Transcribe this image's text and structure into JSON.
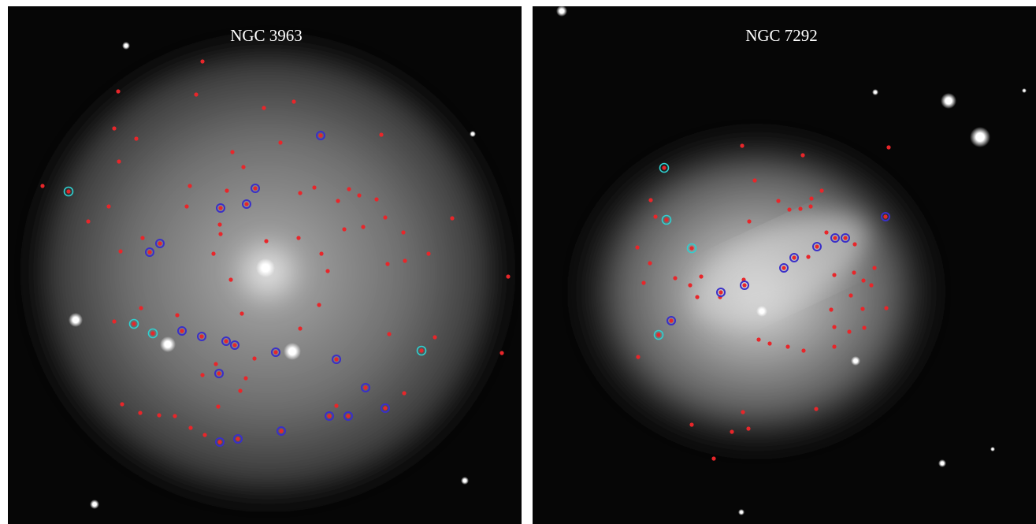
{
  "panels": [
    {
      "title": "NGC 3963"
    },
    {
      "title": "NGC 7292"
    }
  ]
}
